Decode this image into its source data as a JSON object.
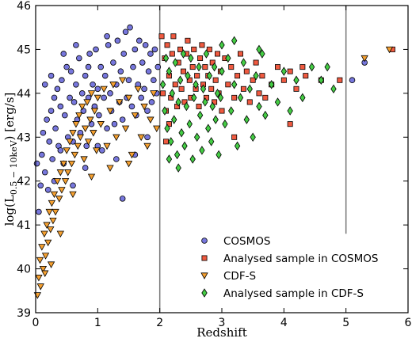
{
  "chart_data": {
    "type": "scatter",
    "xlabel": "Redshift",
    "ylabel": "log(L",
    "ylabel_sub": "0.5 − 10keV",
    "ylabel_tail": ") [erg/s]",
    "xlim": [
      0,
      6
    ],
    "ylim": [
      39,
      46
    ],
    "xticks": [
      "0",
      "1",
      "2",
      "3",
      "4",
      "5",
      "6"
    ],
    "yticks": [
      "39",
      "40",
      "41",
      "42",
      "43",
      "44",
      "45",
      "46"
    ],
    "grid": false,
    "legend_position": "lower-right",
    "vertical_lines": [
      {
        "x": 2,
        "y_range": [
          39,
          46
        ]
      },
      {
        "x": 5,
        "y_range": [
          40.8,
          46
        ]
      }
    ],
    "series": [
      {
        "name": "COSMOS",
        "marker": "circle",
        "color": "#7777dd",
        "points": [
          [
            0.02,
            42.4
          ],
          [
            0.05,
            41.3
          ],
          [
            0.08,
            41.9
          ],
          [
            0.1,
            42.6
          ],
          [
            0.12,
            43.1
          ],
          [
            0.15,
            42.2
          ],
          [
            0.18,
            43.4
          ],
          [
            0.2,
            41.8
          ],
          [
            0.22,
            42.9
          ],
          [
            0.25,
            43.6
          ],
          [
            0.27,
            42.5
          ],
          [
            0.3,
            43.9
          ],
          [
            0.32,
            43.2
          ],
          [
            0.35,
            44.1
          ],
          [
            0.37,
            42.8
          ],
          [
            0.4,
            43.7
          ],
          [
            0.42,
            44.3
          ],
          [
            0.45,
            42.4
          ],
          [
            0.47,
            43.5
          ],
          [
            0.5,
            44.6
          ],
          [
            0.52,
            43.0
          ],
          [
            0.55,
            43.9
          ],
          [
            0.57,
            44.5
          ],
          [
            0.6,
            42.9
          ],
          [
            0.62,
            43.8
          ],
          [
            0.65,
            44.2
          ],
          [
            0.67,
            43.4
          ],
          [
            0.7,
            44.8
          ],
          [
            0.72,
            43.1
          ],
          [
            0.75,
            44.0
          ],
          [
            0.77,
            43.6
          ],
          [
            0.8,
            44.4
          ],
          [
            0.82,
            42.8
          ],
          [
            0.85,
            43.9
          ],
          [
            0.87,
            44.9
          ],
          [
            0.9,
            43.3
          ],
          [
            0.92,
            44.2
          ],
          [
            0.95,
            43.7
          ],
          [
            0.97,
            45.0
          ],
          [
            1.0,
            44.1
          ],
          [
            1.02,
            43.5
          ],
          [
            1.05,
            44.6
          ],
          [
            1.07,
            42.7
          ],
          [
            1.1,
            43.9
          ],
          [
            1.12,
            44.4
          ],
          [
            1.15,
            43.2
          ],
          [
            1.17,
            45.1
          ],
          [
            1.2,
            44.0
          ],
          [
            1.22,
            43.6
          ],
          [
            1.25,
            44.7
          ],
          [
            1.27,
            43.3
          ],
          [
            1.3,
            44.2
          ],
          [
            1.32,
            45.2
          ],
          [
            1.35,
            43.8
          ],
          [
            1.37,
            44.5
          ],
          [
            1.4,
            43.4
          ],
          [
            1.42,
            44.9
          ],
          [
            1.45,
            45.4
          ],
          [
            1.47,
            43.9
          ],
          [
            1.5,
            44.3
          ],
          [
            1.52,
            45.5
          ],
          [
            1.55,
            43.7
          ],
          [
            1.57,
            44.6
          ],
          [
            1.6,
            45.0
          ],
          [
            1.62,
            43.5
          ],
          [
            1.65,
            44.2
          ],
          [
            1.67,
            45.2
          ],
          [
            1.7,
            43.9
          ],
          [
            1.72,
            44.7
          ],
          [
            1.75,
            44.1
          ],
          [
            1.77,
            45.1
          ],
          [
            1.8,
            43.6
          ],
          [
            1.82,
            44.5
          ],
          [
            1.85,
            44.9
          ],
          [
            1.87,
            43.8
          ],
          [
            1.9,
            44.3
          ],
          [
            1.92,
            45.0
          ],
          [
            1.95,
            44.0
          ],
          [
            1.97,
            44.6
          ],
          [
            0.3,
            42.0
          ],
          [
            0.4,
            42.7
          ],
          [
            0.6,
            41.9
          ],
          [
            0.8,
            42.3
          ],
          [
            1.0,
            42.8
          ],
          [
            1.3,
            42.5
          ],
          [
            1.4,
            41.6
          ],
          [
            1.6,
            42.6
          ],
          [
            1.8,
            43.0
          ],
          [
            0.45,
            44.9
          ],
          [
            0.65,
            45.1
          ],
          [
            0.85,
            44.6
          ],
          [
            1.15,
            45.3
          ],
          [
            0.15,
            44.2
          ],
          [
            0.25,
            44.4
          ],
          [
            5.1,
            44.3
          ],
          [
            5.3,
            44.7
          ]
        ]
      },
      {
        "name": "Analysed sample in COSMOS",
        "marker": "square",
        "color": "#f05a40",
        "points": [
          [
            2.03,
            45.3
          ],
          [
            2.05,
            44.0
          ],
          [
            2.08,
            44.8
          ],
          [
            2.1,
            43.6
          ],
          [
            2.12,
            45.1
          ],
          [
            2.15,
            44.4
          ],
          [
            2.18,
            43.9
          ],
          [
            2.2,
            44.9
          ],
          [
            2.22,
            45.3
          ],
          [
            2.25,
            44.2
          ],
          [
            2.28,
            43.7
          ],
          [
            2.3,
            44.7
          ],
          [
            2.33,
            45.0
          ],
          [
            2.35,
            44.1
          ],
          [
            2.38,
            44.5
          ],
          [
            2.4,
            43.8
          ],
          [
            2.43,
            44.9
          ],
          [
            2.45,
            45.2
          ],
          [
            2.48,
            44.3
          ],
          [
            2.5,
            43.9
          ],
          [
            2.53,
            44.6
          ],
          [
            2.55,
            45.0
          ],
          [
            2.58,
            44.1
          ],
          [
            2.6,
            44.4
          ],
          [
            2.63,
            43.7
          ],
          [
            2.65,
            44.8
          ],
          [
            2.68,
            45.1
          ],
          [
            2.7,
            44.2
          ],
          [
            2.73,
            44.6
          ],
          [
            2.75,
            43.9
          ],
          [
            2.78,
            44.4
          ],
          [
            2.8,
            45.0
          ],
          [
            2.83,
            44.1
          ],
          [
            2.85,
            44.7
          ],
          [
            2.88,
            43.8
          ],
          [
            2.9,
            44.3
          ],
          [
            2.93,
            44.9
          ],
          [
            2.95,
            44.0
          ],
          [
            2.98,
            44.5
          ],
          [
            3.0,
            43.6
          ],
          [
            3.05,
            44.8
          ],
          [
            3.1,
            44.2
          ],
          [
            3.15,
            44.6
          ],
          [
            3.2,
            43.9
          ],
          [
            3.25,
            44.4
          ],
          [
            3.3,
            44.9
          ],
          [
            3.35,
            44.1
          ],
          [
            3.4,
            44.5
          ],
          [
            3.45,
            43.8
          ],
          [
            3.5,
            44.3
          ],
          [
            3.55,
            44.7
          ],
          [
            3.6,
            44.0
          ],
          [
            3.65,
            44.4
          ],
          [
            3.7,
            43.9
          ],
          [
            3.8,
            44.2
          ],
          [
            3.9,
            44.6
          ],
          [
            4.0,
            44.3
          ],
          [
            4.1,
            44.5
          ],
          [
            4.2,
            44.1
          ],
          [
            4.3,
            44.6
          ],
          [
            4.35,
            44.4
          ],
          [
            4.1,
            43.3
          ],
          [
            3.2,
            43.0
          ],
          [
            4.6,
            44.3
          ],
          [
            4.9,
            44.3
          ],
          [
            2.1,
            42.9
          ],
          [
            2.15,
            43.3
          ],
          [
            5.75,
            45.0
          ]
        ]
      },
      {
        "name": "CDF-S",
        "marker": "triangle-down",
        "color": "#f5a030",
        "points": [
          [
            0.03,
            39.4
          ],
          [
            0.05,
            39.8
          ],
          [
            0.07,
            40.2
          ],
          [
            0.08,
            39.6
          ],
          [
            0.1,
            40.5
          ],
          [
            0.12,
            40.0
          ],
          [
            0.14,
            40.8
          ],
          [
            0.16,
            40.3
          ],
          [
            0.18,
            41.0
          ],
          [
            0.2,
            40.6
          ],
          [
            0.22,
            41.3
          ],
          [
            0.24,
            40.9
          ],
          [
            0.26,
            41.5
          ],
          [
            0.28,
            41.1
          ],
          [
            0.3,
            41.7
          ],
          [
            0.32,
            41.3
          ],
          [
            0.35,
            42.0
          ],
          [
            0.38,
            41.6
          ],
          [
            0.4,
            42.2
          ],
          [
            0.42,
            41.8
          ],
          [
            0.45,
            42.4
          ],
          [
            0.48,
            42.0
          ],
          [
            0.5,
            42.7
          ],
          [
            0.52,
            42.2
          ],
          [
            0.55,
            42.9
          ],
          [
            0.58,
            42.4
          ],
          [
            0.6,
            43.1
          ],
          [
            0.63,
            42.6
          ],
          [
            0.65,
            43.3
          ],
          [
            0.68,
            42.8
          ],
          [
            0.7,
            43.5
          ],
          [
            0.72,
            43.0
          ],
          [
            0.75,
            43.7
          ],
          [
            0.78,
            42.5
          ],
          [
            0.8,
            43.2
          ],
          [
            0.83,
            43.8
          ],
          [
            0.85,
            42.9
          ],
          [
            0.88,
            43.4
          ],
          [
            0.9,
            44.0
          ],
          [
            0.93,
            43.1
          ],
          [
            0.95,
            43.6
          ],
          [
            0.98,
            42.7
          ],
          [
            1.0,
            43.9
          ],
          [
            1.05,
            43.3
          ],
          [
            1.1,
            44.1
          ],
          [
            1.15,
            42.8
          ],
          [
            1.2,
            43.6
          ],
          [
            1.25,
            44.2
          ],
          [
            1.3,
            43.0
          ],
          [
            1.35,
            43.8
          ],
          [
            1.4,
            44.3
          ],
          [
            1.45,
            43.2
          ],
          [
            1.5,
            43.9
          ],
          [
            1.55,
            42.6
          ],
          [
            1.6,
            43.5
          ],
          [
            1.65,
            44.1
          ],
          [
            1.7,
            43.0
          ],
          [
            1.75,
            43.7
          ],
          [
            1.8,
            42.8
          ],
          [
            1.85,
            43.4
          ],
          [
            1.9,
            44.0
          ],
          [
            1.95,
            43.2
          ],
          [
            0.6,
            41.7
          ],
          [
            0.9,
            42.1
          ],
          [
            1.2,
            42.3
          ],
          [
            1.5,
            42.4
          ],
          [
            0.4,
            40.8
          ],
          [
            0.15,
            39.9
          ],
          [
            0.25,
            40.1
          ],
          [
            5.3,
            44.8
          ],
          [
            5.7,
            45.0
          ]
        ]
      },
      {
        "name": "Analysed sample in CDF-S",
        "marker": "diamond",
        "color": "#44cc44",
        "points": [
          [
            2.05,
            44.2
          ],
          [
            2.08,
            43.6
          ],
          [
            2.1,
            44.8
          ],
          [
            2.12,
            43.2
          ],
          [
            2.15,
            44.5
          ],
          [
            2.18,
            42.9
          ],
          [
            2.2,
            44.0
          ],
          [
            2.23,
            43.4
          ],
          [
            2.25,
            44.7
          ],
          [
            2.28,
            42.6
          ],
          [
            2.3,
            43.8
          ],
          [
            2.33,
            44.3
          ],
          [
            2.35,
            43.1
          ],
          [
            2.38,
            44.9
          ],
          [
            2.4,
            42.8
          ],
          [
            2.43,
            43.7
          ],
          [
            2.45,
            44.4
          ],
          [
            2.48,
            43.3
          ],
          [
            2.5,
            44.8
          ],
          [
            2.53,
            42.5
          ],
          [
            2.55,
            43.9
          ],
          [
            2.58,
            44.2
          ],
          [
            2.6,
            43.0
          ],
          [
            2.63,
            44.6
          ],
          [
            2.65,
            43.5
          ],
          [
            2.68,
            42.7
          ],
          [
            2.7,
            44.1
          ],
          [
            2.73,
            43.8
          ],
          [
            2.75,
            44.9
          ],
          [
            2.78,
            43.2
          ],
          [
            2.8,
            44.4
          ],
          [
            2.83,
            42.9
          ],
          [
            2.85,
            43.7
          ],
          [
            2.88,
            44.6
          ],
          [
            2.9,
            43.4
          ],
          [
            2.93,
            44.0
          ],
          [
            2.95,
            42.6
          ],
          [
            2.98,
            43.9
          ],
          [
            3.0,
            44.5
          ],
          [
            3.05,
            43.3
          ],
          [
            3.1,
            44.8
          ],
          [
            3.15,
            43.6
          ],
          [
            3.2,
            44.2
          ],
          [
            3.25,
            42.8
          ],
          [
            3.3,
            43.9
          ],
          [
            3.35,
            44.7
          ],
          [
            3.4,
            43.4
          ],
          [
            3.45,
            44.1
          ],
          [
            3.5,
            43.0
          ],
          [
            3.55,
            44.4
          ],
          [
            3.6,
            43.7
          ],
          [
            3.65,
            44.9
          ],
          [
            3.7,
            43.5
          ],
          [
            3.8,
            44.2
          ],
          [
            3.9,
            43.8
          ],
          [
            4.0,
            44.5
          ],
          [
            4.1,
            43.6
          ],
          [
            4.2,
            44.3
          ],
          [
            4.3,
            43.9
          ],
          [
            4.45,
            44.6
          ],
          [
            4.6,
            44.3
          ],
          [
            4.8,
            44.1
          ],
          [
            2.3,
            42.3
          ],
          [
            2.15,
            42.5
          ],
          [
            3.0,
            45.1
          ],
          [
            3.2,
            45.2
          ],
          [
            3.6,
            45.0
          ],
          [
            4.7,
            44.6
          ]
        ]
      }
    ]
  }
}
